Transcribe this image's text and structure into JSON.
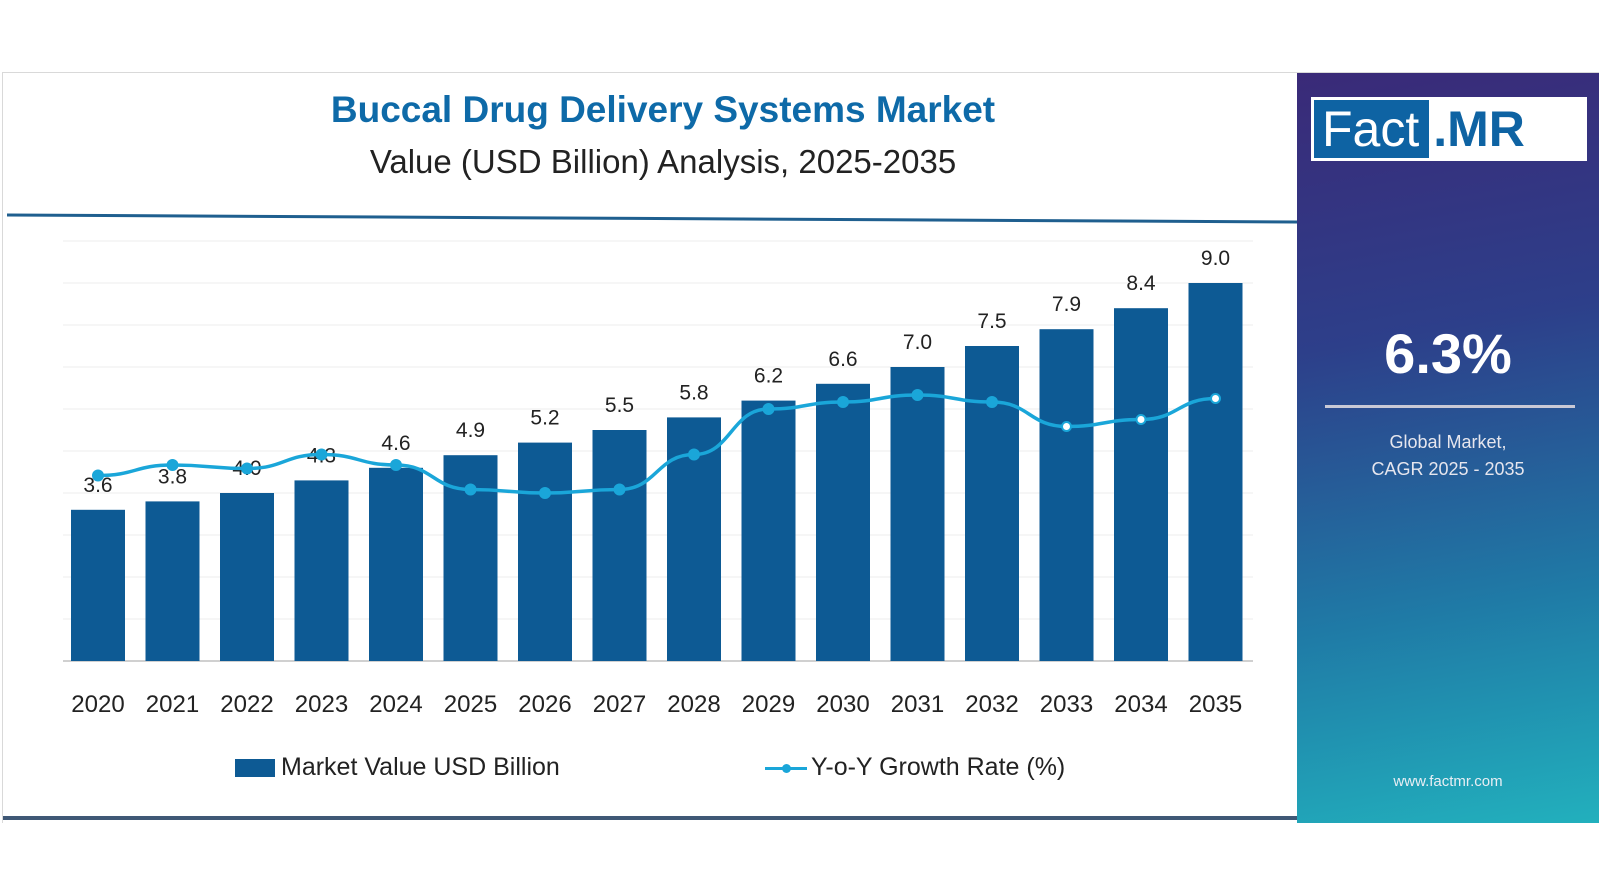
{
  "header": {
    "title": "Buccal Drug Delivery Systems Market",
    "subtitle": "Value (USD Billion) Analysis, 2025-2035"
  },
  "chart_data": {
    "type": "bar",
    "title": "Buccal Drug Delivery Systems Market",
    "subtitle": "Value (USD Billion) Analysis, 2025-2035",
    "categories": [
      "2020",
      "2021",
      "2022",
      "2023",
      "2024",
      "2025",
      "2026",
      "2027",
      "2028",
      "2029",
      "2030",
      "2031",
      "2032",
      "2033",
      "2034",
      "2035"
    ],
    "series": [
      {
        "name": "Market Value USD Billion",
        "type": "bar",
        "values": [
          3.6,
          3.8,
          4.0,
          4.3,
          4.6,
          4.9,
          5.2,
          5.5,
          5.8,
          6.2,
          6.6,
          7.0,
          7.5,
          7.9,
          8.4,
          9.0
        ],
        "color": "#0d5a94"
      },
      {
        "name": "Y-o-Y Growth Rate (%)",
        "type": "line",
        "values": [
          5.3,
          5.6,
          5.5,
          5.9,
          5.6,
          4.9,
          4.8,
          4.9,
          5.9,
          7.2,
          7.4,
          7.6,
          7.4,
          6.7,
          6.9,
          7.5
        ],
        "color": "#1aa6d9"
      }
    ],
    "ylim": [
      0,
      10
    ],
    "grid": true,
    "legend": "bottom"
  },
  "legend": {
    "bar_label": "Market Value USD Billion",
    "line_label": "Y-o-Y Growth Rate (%)"
  },
  "sidebar": {
    "logo_fact": "Fact",
    "logo_mr": ".MR",
    "cagr": "6.3%",
    "caption_line1": "Global Market,",
    "caption_line2": "CAGR 2025 - 2035",
    "website": "www.factmr.com"
  }
}
